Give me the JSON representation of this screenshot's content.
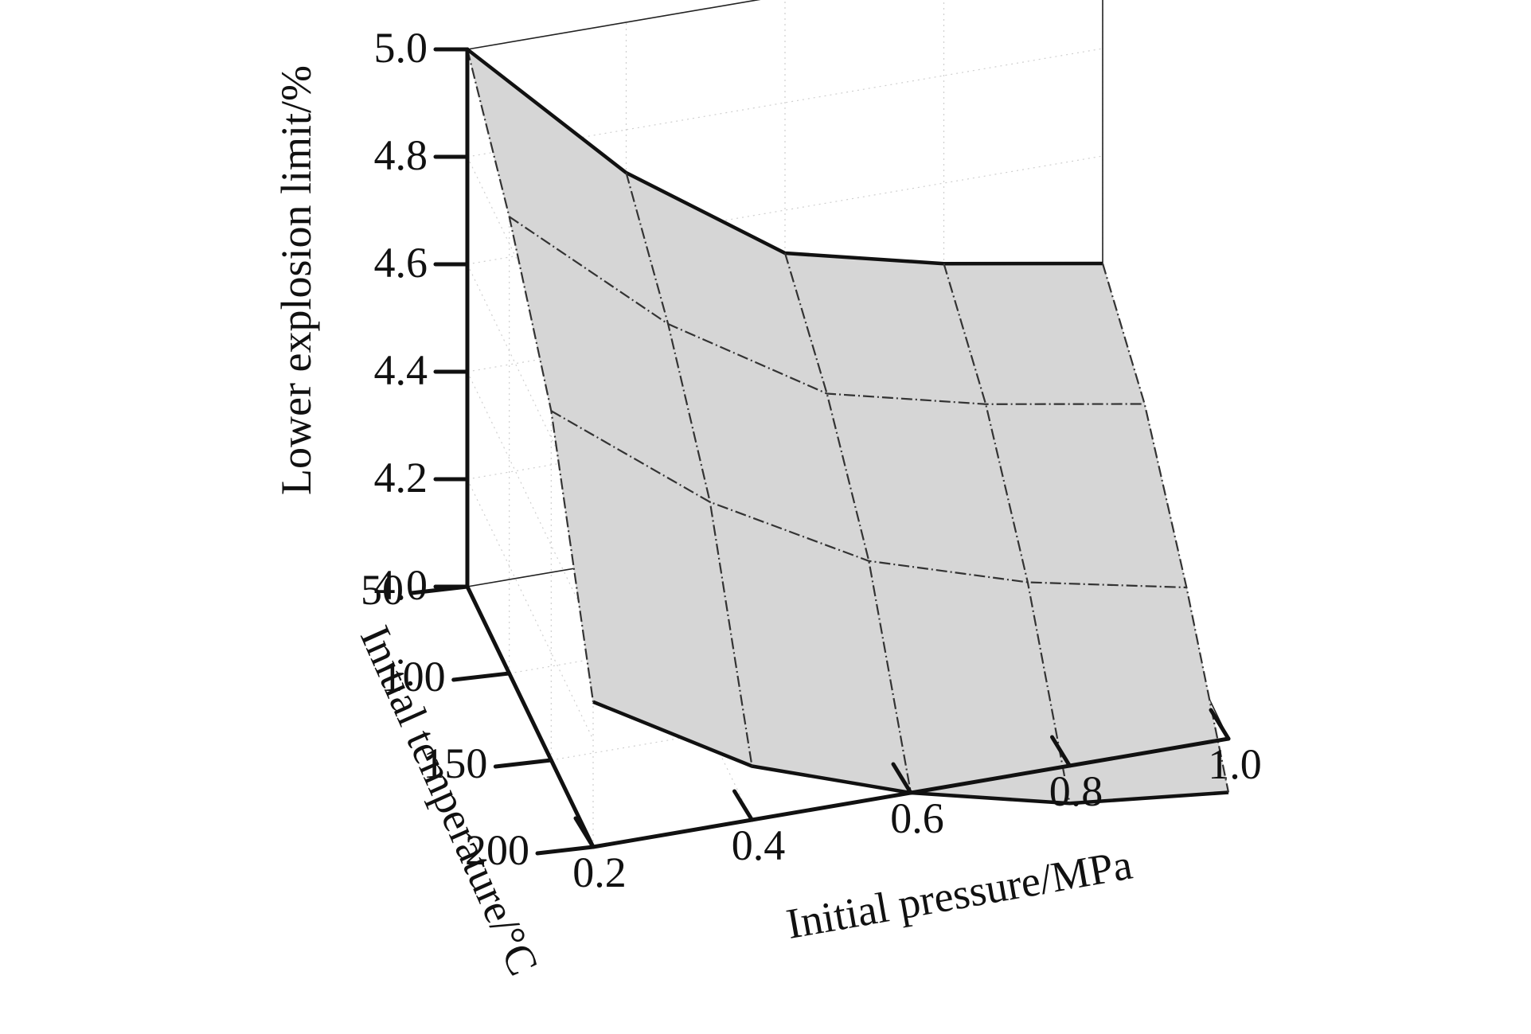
{
  "chart_data": {
    "type": "surface",
    "x_axis": {
      "label": "Initial pressure/MPa",
      "ticks": [
        0.2,
        0.4,
        0.6,
        0.8,
        1.0
      ],
      "tick_labels": [
        "0.2",
        "0.4",
        "0.6",
        "0.8",
        "1.0"
      ],
      "range": [
        0.2,
        1.0
      ]
    },
    "y_axis": {
      "label": "Initial temperature/°C",
      "ticks": [
        50,
        100,
        150,
        200
      ],
      "tick_labels": [
        "50",
        "100",
        "150",
        "200"
      ],
      "range": [
        50,
        200
      ]
    },
    "z_axis": {
      "label": "Lower explosion limit/%",
      "ticks": [
        4.0,
        4.2,
        4.4,
        4.6,
        4.8,
        5.0
      ],
      "tick_labels": [
        "4.0",
        "4.2",
        "4.4",
        "4.6",
        "4.8",
        "5.0"
      ],
      "range": [
        4.0,
        5.0
      ]
    },
    "pressure": [
      0.2,
      0.4,
      0.6,
      0.8,
      1.0
    ],
    "temperature": [
      50,
      100,
      150,
      200
    ],
    "z": [
      [
        5.0,
        4.72,
        4.52,
        4.45,
        4.4
      ],
      [
        4.85,
        4.6,
        4.42,
        4.35,
        4.3
      ],
      [
        4.65,
        4.43,
        4.27,
        4.18,
        4.12
      ],
      [
        4.27,
        4.1,
        4.0,
        3.93,
        3.9
      ]
    ],
    "grid": true,
    "colors": {
      "surface": "#d6d6d6",
      "mesh": "#333333",
      "axes": "#111111",
      "grid": "#cfcfcf"
    }
  }
}
